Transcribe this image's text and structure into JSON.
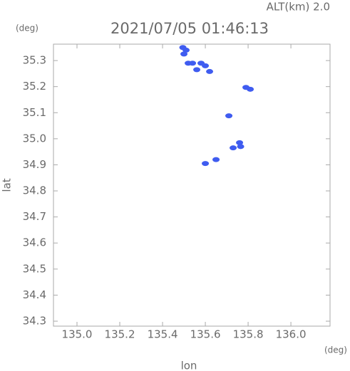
{
  "chart_data": {
    "type": "scatter",
    "title": "2021/07/05 01:46:13",
    "subtitle": "ALT(km) 2.0",
    "x_label": "lon",
    "y_label": "lat",
    "x_unit": "(deg)",
    "y_unit": "(deg)",
    "series": [
      {
        "color": "#3f5cf0",
        "x": [
          135.495,
          135.51,
          135.5,
          135.52,
          135.54,
          135.58,
          135.6,
          135.56,
          135.62,
          135.79,
          135.81,
          135.71,
          135.73,
          135.76,
          135.765,
          135.65,
          135.6
        ],
        "values": [
          35.35,
          35.34,
          35.325,
          35.29,
          35.29,
          35.29,
          35.28,
          35.265,
          35.258,
          35.197,
          35.19,
          35.088,
          34.965,
          34.985,
          34.97,
          34.92,
          34.905
        ]
      }
    ],
    "xlim": [
      134.89,
      136.183
    ],
    "ylim": [
      34.281,
      35.363
    ],
    "xticks": [
      {
        "value": 135,
        "label": "135.0"
      },
      135.2,
      135.4,
      135.6,
      135.8,
      {
        "value": 136,
        "label": "136.0"
      }
    ],
    "yticks": [
      34.3,
      34.4,
      34.5,
      34.6,
      34.7,
      34.8,
      34.9,
      {
        "value": 35,
        "label": "35.0"
      },
      35.1,
      35.2,
      35.3
    ]
  }
}
